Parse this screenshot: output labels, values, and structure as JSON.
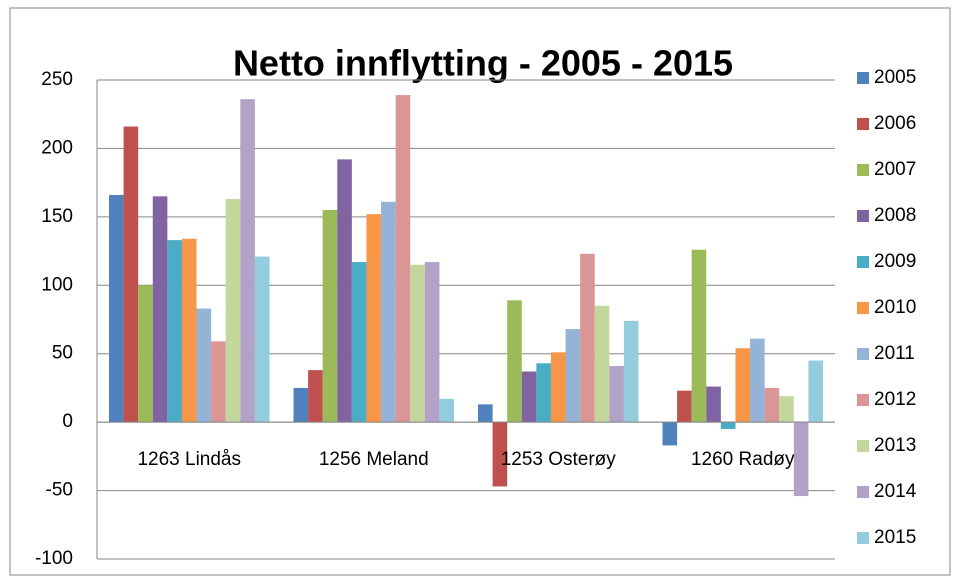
{
  "chart_data": {
    "type": "bar",
    "title": "Netto innflytting - 2005 - 2015",
    "categories": [
      "1263 Lindås",
      "1256 Meland",
      "1253 Osterøy",
      "1260 Radøy"
    ],
    "series": [
      {
        "name": "2005",
        "color": "#4F81BD",
        "values": [
          166,
          25,
          13,
          -17
        ]
      },
      {
        "name": "2006",
        "color": "#C0504D",
        "values": [
          216,
          38,
          -47,
          23
        ]
      },
      {
        "name": "2007",
        "color": "#9BBB59",
        "values": [
          100,
          155,
          89,
          126
        ]
      },
      {
        "name": "2008",
        "color": "#8064A2",
        "values": [
          165,
          192,
          37,
          26
        ]
      },
      {
        "name": "2009",
        "color": "#4BACC6",
        "values": [
          133,
          117,
          43,
          -5
        ]
      },
      {
        "name": "2010",
        "color": "#F79646",
        "values": [
          134,
          152,
          51,
          54
        ]
      },
      {
        "name": "2011",
        "color": "#95B3D7",
        "values": [
          83,
          161,
          68,
          61
        ]
      },
      {
        "name": "2012",
        "color": "#D99694",
        "values": [
          59,
          239,
          123,
          25
        ]
      },
      {
        "name": "2013",
        "color": "#C3D69B",
        "values": [
          163,
          115,
          85,
          19
        ]
      },
      {
        "name": "2014",
        "color": "#B3A2C7",
        "values": [
          236,
          117,
          41,
          -54
        ]
      },
      {
        "name": "2015",
        "color": "#93CDDD",
        "values": [
          121,
          17,
          74,
          45
        ]
      }
    ],
    "ylim": [
      -100,
      250
    ],
    "yticks": [
      -100,
      -50,
      0,
      50,
      100,
      150,
      200,
      250
    ],
    "grid": true,
    "legend": "right"
  }
}
